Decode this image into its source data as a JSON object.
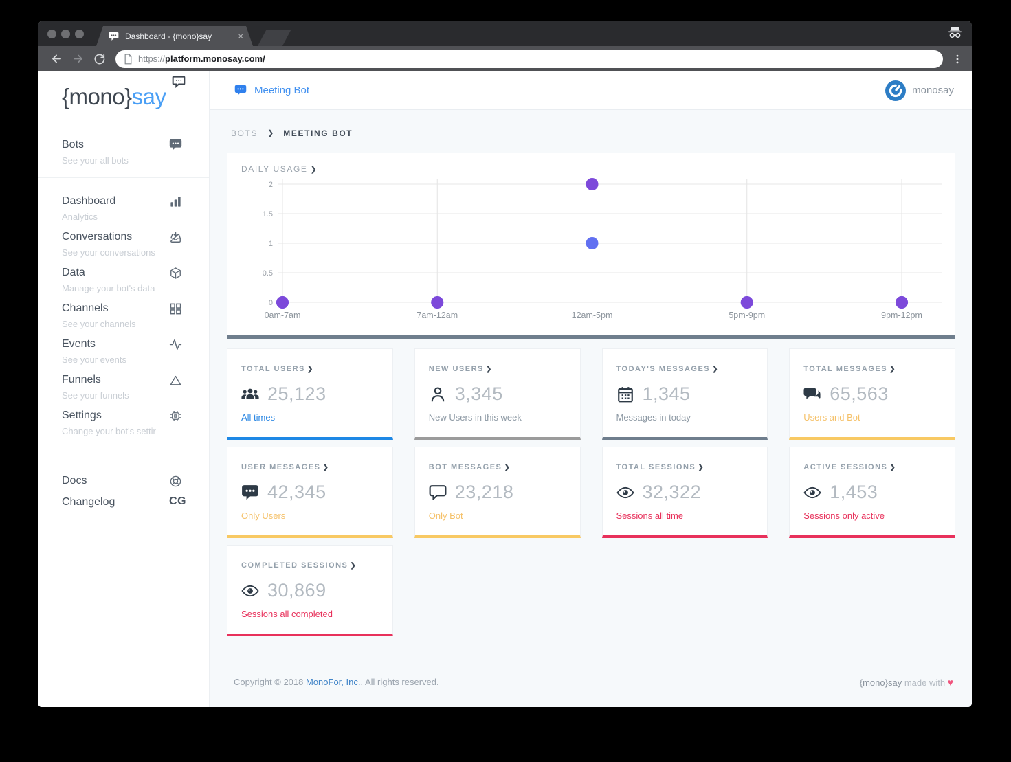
{
  "browser": {
    "tab_title": "Dashboard - {mono}say",
    "tab_close": "×",
    "url_scheme": "https://",
    "url_host": "platform.monosay.com/"
  },
  "sidebar": {
    "logo_prefix": "{mono}",
    "logo_suffix": "say",
    "sections": [
      {
        "items": [
          {
            "label": "Bots",
            "sub": "See your all bots",
            "icon": "chat-solid"
          }
        ]
      },
      {
        "items": [
          {
            "label": "Dashboard",
            "sub": "Analytics",
            "icon": "bar-chart"
          },
          {
            "label": "Conversations",
            "sub": "See your conversations",
            "icon": "inbox"
          },
          {
            "label": "Data",
            "sub": "Manage your bot's data",
            "icon": "cube"
          },
          {
            "label": "Channels",
            "sub": "See your channels",
            "icon": "grid"
          },
          {
            "label": "Events",
            "sub": "See your events",
            "icon": "activity"
          },
          {
            "label": "Funnels",
            "sub": "See your funnels",
            "icon": "triangle"
          },
          {
            "label": "Settings",
            "sub": "Change your bot's settir",
            "icon": "chip"
          }
        ]
      },
      {
        "items": [
          {
            "label": "Docs",
            "sub": "",
            "icon": "lifebuoy"
          },
          {
            "label": "Changelog",
            "sub": "",
            "icon": "CG"
          }
        ]
      }
    ]
  },
  "header": {
    "bot_name": "Meeting Bot",
    "account_name": "monosay"
  },
  "breadcrumb": {
    "root": "BOTS",
    "separator": "❯",
    "current": "MEETING BOT"
  },
  "ui": {
    "chevron": "❯"
  },
  "chart_data": {
    "type": "scatter",
    "title": "DAILY USAGE",
    "categories": [
      "0am-7am",
      "7am-12am",
      "12am-5pm",
      "5pm-9pm",
      "9pm-12pm"
    ],
    "series": [
      {
        "name": "purple",
        "color": "#7d49da",
        "values": [
          0,
          0,
          2,
          0,
          0
        ]
      },
      {
        "name": "blue",
        "color": "#6170f1",
        "values": [
          0,
          0,
          1,
          0,
          0
        ]
      }
    ],
    "yticks": [
      0,
      0.5,
      1,
      1.5,
      2
    ],
    "ylim": [
      0,
      2
    ],
    "grid": true,
    "legend": "none"
  },
  "cards": [
    {
      "title": "TOTAL USERS",
      "icon": "users-group",
      "value": "25,123",
      "subtitle": "All times",
      "subtitle_color": "#2b87e3",
      "accent": "#1e88e5"
    },
    {
      "title": "NEW USERS",
      "icon": "user",
      "value": "3,345",
      "subtitle": "New Users in this week",
      "subtitle_color": "#8d99a4",
      "accent": "#9b9b9b"
    },
    {
      "title": "TODAY'S MESSAGES",
      "icon": "calendar",
      "value": "1,345",
      "subtitle": "Messages in today",
      "subtitle_color": "#8d99a4",
      "accent": "#6f7e8d"
    },
    {
      "title": "TOTAL MESSAGES",
      "icon": "chat-double",
      "value": "65,563",
      "subtitle": "Users and Bot",
      "subtitle_color": "#f5c169",
      "accent": "#f8c963"
    },
    {
      "title": "USER MESSAGES",
      "icon": "chat-solid",
      "value": "42,345",
      "subtitle": "Only Users",
      "subtitle_color": "#f5c169",
      "accent": "#f8c963"
    },
    {
      "title": "BOT MESSAGES",
      "icon": "chat-outline",
      "value": "23,218",
      "subtitle": "Only Bot",
      "subtitle_color": "#f5c169",
      "accent": "#f8c963"
    },
    {
      "title": "TOTAL SESSIONS",
      "icon": "eye",
      "value": "32,322",
      "subtitle": "Sessions all time",
      "subtitle_color": "#e8315b",
      "accent": "#e8315b"
    },
    {
      "title": "ACTIVE SESSIONS",
      "icon": "eye",
      "value": "1,453",
      "subtitle": "Sessions only active",
      "subtitle_color": "#e8315b",
      "accent": "#e8315b"
    },
    {
      "title": "COMPLETED SESSIONS",
      "icon": "eye",
      "value": "30,869",
      "subtitle": "Sessions all completed",
      "subtitle_color": "#e8315b",
      "accent": "#e8315b"
    }
  ],
  "footer": {
    "copyright_prefix": "Copyright © 2018 ",
    "company": "MonoFor, Inc.",
    "copyright_suffix": ". All rights reserved.",
    "made_brand": "{mono}say",
    "made_text": " made with ",
    "heart": "♥"
  },
  "colors": {
    "accent_blue": "#4492f0",
    "purple_dot": "#7d49da",
    "blue_dot": "#6170f1",
    "amber": "#f8c963",
    "red": "#e8315b",
    "slate": "#6f7e8d"
  }
}
